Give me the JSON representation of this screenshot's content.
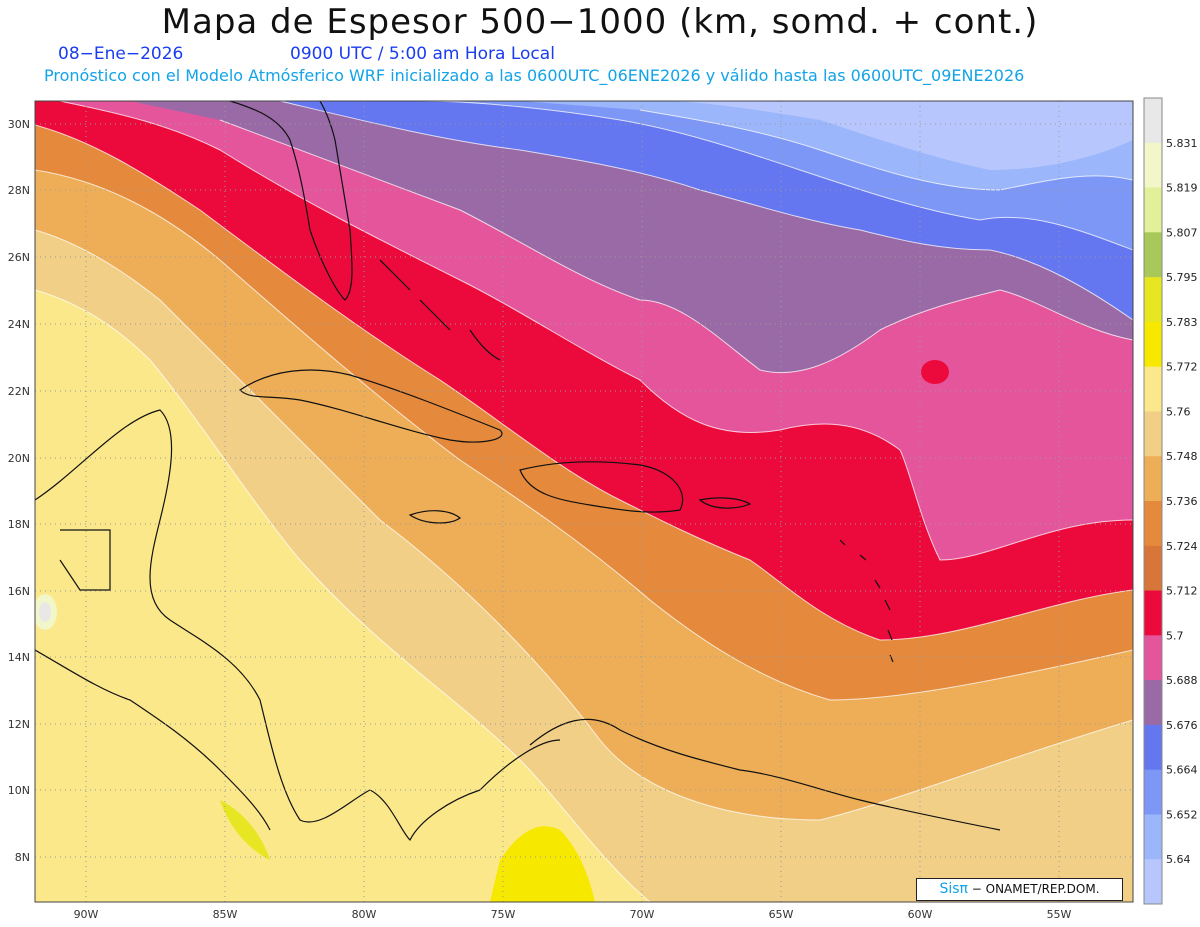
{
  "header": {
    "title": "Mapa de Espesor 500−1000 (km, somd. + cont.)",
    "date": "08−Ene−2026",
    "time": "0900 UTC / 5:00 am Hora Local",
    "subtitle": "Pronóstico con el Modelo Atmósferico WRF inicializado a las 0600UTC_06ENE2026 y válido hasta las  0600UTC_09ENE2026"
  },
  "map": {
    "lat_labels": [
      "30N",
      "28N",
      "26N",
      "24N",
      "22N",
      "20N",
      "18N",
      "16N",
      "14N",
      "12N",
      "10N",
      "8N"
    ],
    "lon_labels": [
      "90W",
      "85W",
      "80W",
      "75W",
      "70W",
      "65W",
      "60W",
      "55W"
    ],
    "grid": "on",
    "grid_style": "dotted"
  },
  "colorbar": {
    "labels": [
      "5.831",
      "5.819",
      "5.807",
      "5.795",
      "5.783",
      "5.772",
      "5.76",
      "5.748",
      "5.736",
      "5.724",
      "5.712",
      "5.7",
      "5.688",
      "5.676",
      "5.664",
      "5.652",
      "5.64"
    ],
    "colors": [
      "#e8e8e8",
      "#f2f6c8",
      "#e2f09a",
      "#a8c95a",
      "#e6e622",
      "#f7e800",
      "#fbe88a",
      "#f2cf86",
      "#eeae58",
      "#e58a3c",
      "#d8763a",
      "#ec0a3c",
      "#e5559c",
      "#9a6aa6",
      "#6476f0",
      "#7d97f6",
      "#9bb6fb",
      "#b7c6fc"
    ]
  },
  "credit": {
    "sis": "Sisπ",
    "org": " − ONAMET/REP.DOM."
  }
}
